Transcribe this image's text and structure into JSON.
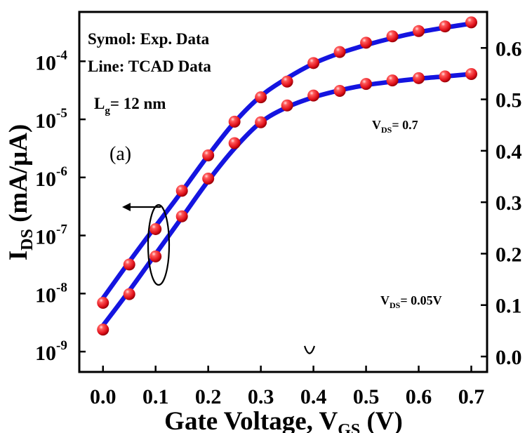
{
  "chart_data": {
    "type": "line",
    "xlabel_main": "Gate Voltage, V",
    "xlabel_sub": "GS",
    "xlabel_unit": " (V)",
    "ylabel_main": "I",
    "ylabel_sub": "DS",
    "ylabel_unit": " (mA/μA)",
    "x_ticks": [
      "0.0",
      "0.1",
      "0.2",
      "0.3",
      "0.4",
      "0.5",
      "0.6",
      "0.7"
    ],
    "xlim": [
      -0.045,
      0.73
    ],
    "y_left": {
      "scale": "log",
      "ylim_exp": [
        -9.35,
        -3.15
      ],
      "tick_exps": [
        -9,
        -8,
        -7,
        -6,
        -5,
        -4
      ],
      "tick_base": "10"
    },
    "y_right": {
      "scale": "linear",
      "ylim": [
        -0.03,
        0.67
      ],
      "ticks": [
        "0.0",
        "0.1",
        "0.2",
        "0.3",
        "0.4",
        "0.5",
        "0.6"
      ]
    },
    "annotations": {
      "legend_symbol": "Symol: Exp. Data",
      "legend_line": "Line: TCAD Data",
      "lg_main": "L",
      "lg_sub": "g",
      "lg_val": "= 12 nm",
      "vds_high_main": "V",
      "vds_high_sub": "DS",
      "vds_high_val": "= 0.7",
      "vds_low_main": "V",
      "vds_low_sub": "DS",
      "vds_low_val": "= 0.05V",
      "panel": "(a)"
    },
    "colors": {
      "line": "#1414e0",
      "marker": "#e8141e",
      "marker_highlight": "#ffb0b0"
    },
    "series": [
      {
        "name": "upper",
        "x": [
          0.0,
          0.05,
          0.1,
          0.15,
          0.2,
          0.25,
          0.3,
          0.35,
          0.4,
          0.45,
          0.5,
          0.55,
          0.6,
          0.65,
          0.7
        ],
        "y_exp": [
          -8.16,
          -7.5,
          -6.89,
          -6.23,
          -5.62,
          -5.04,
          -4.62,
          -4.35,
          -4.03,
          -3.84,
          -3.68,
          -3.57,
          -3.48,
          -3.4,
          -3.33
        ],
        "fit_exp": [
          -8.08,
          -7.45,
          -6.84,
          -6.24,
          -5.62,
          -5.05,
          -4.6,
          -4.29,
          -4.04,
          -3.86,
          -3.72,
          -3.6,
          -3.5,
          -3.42,
          -3.35
        ]
      },
      {
        "name": "lower",
        "x": [
          0.0,
          0.05,
          0.1,
          0.15,
          0.2,
          0.25,
          0.3,
          0.35,
          0.4,
          0.45,
          0.5,
          0.55,
          0.6,
          0.65,
          0.7
        ],
        "y_exp": [
          -8.62,
          -8.01,
          -7.36,
          -6.67,
          -6.02,
          -5.41,
          -5.05,
          -4.76,
          -4.59,
          -4.51,
          -4.39,
          -4.33,
          -4.29,
          -4.26,
          -4.22
        ],
        "fit_exp": [
          -8.55,
          -7.95,
          -7.32,
          -6.69,
          -6.06,
          -5.5,
          -5.05,
          -4.79,
          -4.62,
          -4.5,
          -4.41,
          -4.35,
          -4.3,
          -4.26,
          -4.22
        ]
      }
    ]
  }
}
